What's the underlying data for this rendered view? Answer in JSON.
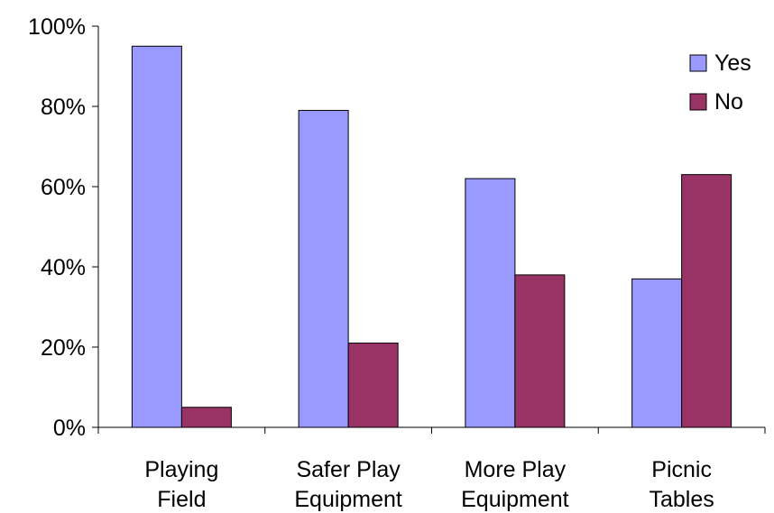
{
  "chart_data": {
    "type": "bar",
    "categories": [
      [
        "Playing",
        "Field"
      ],
      [
        "Safer Play",
        "Equipment"
      ],
      [
        "More Play",
        "Equipment"
      ],
      [
        "Picnic",
        "Tables"
      ]
    ],
    "series": [
      {
        "name": "Yes",
        "values": [
          95,
          79,
          62,
          37
        ],
        "color": "#9999ff"
      },
      {
        "name": "No",
        "values": [
          5,
          21,
          38,
          63
        ],
        "color": "#993366"
      }
    ],
    "ylim": [
      0,
      100
    ],
    "yticks": [
      0,
      20,
      40,
      60,
      80,
      100
    ],
    "ytick_labels": [
      "0%",
      "20%",
      "40%",
      "60%",
      "80%",
      "100%"
    ],
    "title": "",
    "xlabel": "",
    "ylabel": "",
    "grid": false,
    "legend_position": "top-right"
  }
}
